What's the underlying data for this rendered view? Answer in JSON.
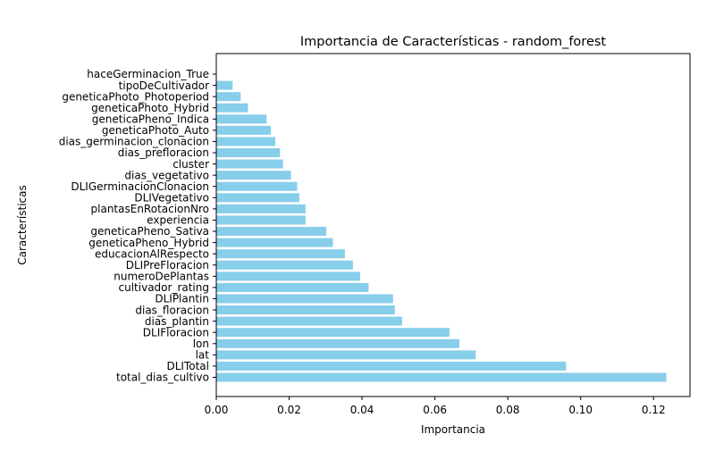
{
  "chart_data": {
    "type": "bar",
    "orientation": "horizontal",
    "title": "Importancia de Características - random_forest",
    "xlabel": "Importancia",
    "ylabel": "Características",
    "xlim": [
      0,
      0.13
    ],
    "xticks": [
      "0.00",
      "0.02",
      "0.04",
      "0.06",
      "0.08",
      "0.10",
      "0.12"
    ],
    "xtick_values": [
      0,
      0.02,
      0.04,
      0.06,
      0.08,
      0.1,
      0.12
    ],
    "grid": false,
    "bar_color": "#87ceeb",
    "categories": [
      "total_dias_cultivo",
      "DLITotal",
      "lat",
      "lon",
      "DLIFloracion",
      "dias_plantin",
      "dias_floracion",
      "DLIPlantin",
      "cultivador_rating",
      "numeroDePlantas",
      "DLIPreFloracion",
      "educacionAlRespecto",
      "geneticaPheno_Hybrid",
      "geneticaPheno_Sativa",
      "experiencia",
      "plantasEnRotacionNro",
      "DLIVegetativo",
      "DLIGerminacionClonacion",
      "dias_vegetativo",
      "cluster",
      "dias_prefloracion",
      "dias_germinacion_clonacion",
      "geneticaPhoto_Auto",
      "geneticaPheno_Indica",
      "geneticaPhoto_Hybrid",
      "geneticaPhoto_Photoperiod",
      "tipoDeCultivador",
      "haceGerminacion_True"
    ],
    "values": [
      0.1235,
      0.096,
      0.0712,
      0.0667,
      0.064,
      0.051,
      0.049,
      0.0485,
      0.0418,
      0.0395,
      0.0375,
      0.0353,
      0.032,
      0.0302,
      0.0245,
      0.0245,
      0.0228,
      0.0222,
      0.0205,
      0.0183,
      0.0175,
      0.0162,
      0.015,
      0.0138,
      0.0087,
      0.0067,
      0.0045,
      0.0
    ]
  }
}
